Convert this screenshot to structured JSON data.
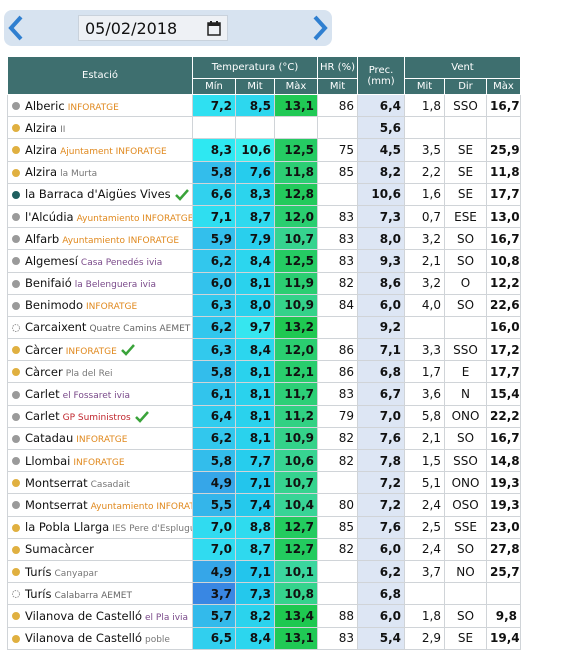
{
  "header": {
    "date": "05/02/2018"
  },
  "table": {
    "headers": {
      "station": "Estació",
      "temp": "Temperatura (°C)",
      "hr": "HR (%)",
      "prec": "Prec. (mm)",
      "wind": "Vent"
    },
    "subheaders": [
      "Mín",
      "Mit",
      "Màx",
      "Mit",
      "Mit",
      "Dir",
      "Màx"
    ],
    "rows": [
      {
        "station": "Alberic",
        "sub": "INFORATGE",
        "sub_color": "#e0891e",
        "dot": "#9a9a9a",
        "values": [
          "7,2",
          "8,5",
          "13,1",
          "86",
          "6,4",
          "1,8",
          "SSO",
          "16,7"
        ]
      },
      {
        "station": "Alzira",
        "sub": "II",
        "sub_color": "#777777",
        "dot": "#e0b040",
        "values": [
          null,
          null,
          null,
          null,
          "5,6",
          null,
          null,
          null
        ]
      },
      {
        "station": "Alzira",
        "sub": "Ajuntament INFORATGE",
        "sub_color": "#e0891e",
        "dot": "#e0b040",
        "values": [
          "8,3",
          "10,6",
          "12,5",
          "75",
          "4,5",
          "3,5",
          "SE",
          "25,9"
        ]
      },
      {
        "station": "Alzira",
        "sub": "la Murta",
        "sub_color": "#777777",
        "dot": "#e0b040",
        "values": [
          "5,8",
          "7,6",
          "11,8",
          "85",
          "8,2",
          "2,2",
          "SE",
          "11,8"
        ]
      },
      {
        "station": "la Barraca d'Aigües Vives",
        "check": true,
        "dot": "#1f5f5f",
        "values": [
          "6,6",
          "8,3",
          "12,8",
          null,
          "10,6",
          "1,6",
          "SE",
          "17,7"
        ]
      },
      {
        "station": "l'Alcúdia",
        "sub": "Ayuntamiento INFORATGE",
        "sub_color": "#e0891e",
        "dot": "#9a9a9a",
        "values": [
          "7,1",
          "8,7",
          "12,0",
          "83",
          "7,3",
          "0,7",
          "ESE",
          "13,0"
        ]
      },
      {
        "station": "Alfarb",
        "sub": "Ayuntamiento INFORATGE",
        "sub_color": "#e0891e",
        "dot": "#9a9a9a",
        "values": [
          "5,9",
          "7,9",
          "10,7",
          "83",
          "8,0",
          "3,2",
          "SO",
          "16,7"
        ]
      },
      {
        "station": "Algemesí",
        "sub": "Casa Penedés ivia",
        "sub_color": "#7a4a8a",
        "dot": "#9a9a9a",
        "values": [
          "6,2",
          "8,4",
          "12,5",
          "83",
          "9,3",
          "2,1",
          "SO",
          "10,8"
        ]
      },
      {
        "station": "Benifaió",
        "sub": "la Belenguera ivia",
        "sub_color": "#7a4a8a",
        "dot": "#9a9a9a",
        "values": [
          "6,0",
          "8,1",
          "11,9",
          "82",
          "8,6",
          "3,2",
          "O",
          "12,2"
        ]
      },
      {
        "station": "Benimodo",
        "sub": "INFORATGE",
        "sub_color": "#e0891e",
        "dot": "#9a9a9a",
        "values": [
          "6,3",
          "8,0",
          "10,9",
          "84",
          "6,0",
          "4,0",
          "SO",
          "22,6"
        ]
      },
      {
        "station": "Carcaixent",
        "sub": "Quatre Camins AEMET",
        "sub_color": "#666666",
        "dot": "none",
        "values": [
          "6,2",
          "9,7",
          "13,2",
          null,
          "9,2",
          null,
          null,
          "16,0"
        ]
      },
      {
        "station": "Càrcer",
        "sub": "INFORATGE",
        "sub_color": "#e0891e",
        "check": true,
        "dot": "#e0b040",
        "values": [
          "6,3",
          "8,4",
          "12,0",
          "86",
          "7,1",
          "3,3",
          "SSO",
          "17,2"
        ]
      },
      {
        "station": "Càrcer",
        "sub": "Pla del Rei",
        "sub_color": "#777777",
        "dot": "#e0b040",
        "values": [
          "5,8",
          "8,1",
          "12,1",
          "86",
          "6,8",
          "1,7",
          "E",
          "17,7"
        ]
      },
      {
        "station": "Carlet",
        "sub": "el Fossaret ivia",
        "sub_color": "#7a4a8a",
        "dot": "#9a9a9a",
        "values": [
          "6,1",
          "8,1",
          "11,7",
          "83",
          "6,7",
          "3,6",
          "N",
          "15,4"
        ]
      },
      {
        "station": "Carlet",
        "sub": "GP Suministros",
        "sub_color": "#c0262d",
        "check": true,
        "dot": "#9a9a9a",
        "values": [
          "6,4",
          "8,1",
          "11,2",
          "79",
          "7,0",
          "5,8",
          "ONO",
          "22,2"
        ]
      },
      {
        "station": "Catadau",
        "sub": "INFORATGE",
        "sub_color": "#e0891e",
        "dot": "#9a9a9a",
        "values": [
          "6,2",
          "8,1",
          "10,9",
          "82",
          "7,6",
          "2,1",
          "SO",
          "16,7"
        ]
      },
      {
        "station": "Llombai",
        "sub": "INFORATGE",
        "sub_color": "#e0891e",
        "dot": "#9a9a9a",
        "values": [
          "5,8",
          "7,7",
          "10,6",
          "82",
          "7,8",
          "1,5",
          "SSO",
          "14,8"
        ]
      },
      {
        "station": "Montserrat",
        "sub": "Casadait",
        "sub_color": "#777777",
        "dot": "#e0b040",
        "values": [
          "4,9",
          "7,1",
          "10,7",
          null,
          "7,2",
          "5,1",
          "ONO",
          "19,3"
        ]
      },
      {
        "station": "Montserrat",
        "sub": "Ayuntamiento INFORATGE",
        "sub_color": "#e0891e",
        "dot": "#9a9a9a",
        "values": [
          "5,5",
          "7,4",
          "10,4",
          "80",
          "7,2",
          "2,4",
          "OSO",
          "19,3"
        ]
      },
      {
        "station": "la Pobla Llarga",
        "sub": "IES Pere d'Esplugues",
        "sub_color": "#777777",
        "dot": "#e0b040",
        "values": [
          "7,0",
          "8,8",
          "12,7",
          "85",
          "7,6",
          "2,5",
          "SSE",
          "23,0"
        ]
      },
      {
        "station": "Sumacàrcer",
        "dot": "#e0b040",
        "values": [
          "7,0",
          "8,7",
          "12,7",
          "82",
          "6,0",
          "2,4",
          "SO",
          "27,8"
        ]
      },
      {
        "station": "Turís",
        "sub": "Canyapar",
        "sub_color": "#777777",
        "dot": "#e0b040",
        "values": [
          "4,9",
          "7,1",
          "10,1",
          null,
          "6,2",
          "3,7",
          "NO",
          "25,7"
        ]
      },
      {
        "station": "Turís",
        "sub": "Calabarra AEMET",
        "sub_color": "#666666",
        "dot": "none",
        "values": [
          "3,7",
          "7,3",
          "10,8",
          null,
          "6,8",
          null,
          null,
          null
        ]
      },
      {
        "station": "Vilanova de Castelló",
        "sub": "el Pla ivia",
        "sub_color": "#7a4a8a",
        "dot": "#e0b040",
        "values": [
          "5,7",
          "8,2",
          "13,4",
          "88",
          "6,0",
          "1,8",
          "SO",
          "9,8"
        ]
      },
      {
        "station": "Vilanova de Castelló",
        "sub": "poble",
        "sub_color": "#777777",
        "dot": "#e0b040",
        "values": [
          "6,5",
          "8,4",
          "13,1",
          "83",
          "5,4",
          "2,9",
          "SE",
          "19,4"
        ]
      }
    ]
  }
}
